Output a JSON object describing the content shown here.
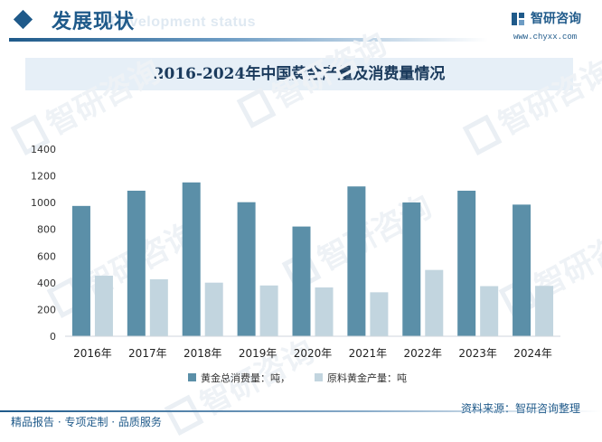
{
  "header": {
    "title": "发展现状",
    "subtitle_en": "Development status",
    "brand_name": "智研咨询",
    "brand_url": "www.chyxx.com",
    "accent_color": "#1f5a8a"
  },
  "watermark_text": "智研咨询",
  "footer": {
    "source": "资料来源：智研咨询整理",
    "slogan": "精品报告 · 专项定制 · 品质服务"
  },
  "chart_data": {
    "type": "bar",
    "title": "2016-2024年中国黄金产量及消费量情况",
    "categories": [
      "2016年",
      "2017年",
      "2018年",
      "2019年",
      "2020年",
      "2021年",
      "2022年",
      "2023年",
      "2024年"
    ],
    "series": [
      {
        "name": "黄金总消费量：吨，",
        "color": "#5b8fa8",
        "values": [
          975,
          1089,
          1151,
          1003,
          821,
          1121,
          1001,
          1089,
          985
        ]
      },
      {
        "name": "原料黄金产量：吨",
        "color": "#c2d5df",
        "values": [
          453,
          426,
          401,
          380,
          365,
          329,
          496,
          375,
          377
        ]
      }
    ],
    "ylim": [
      0,
      1400
    ],
    "yticks": [
      0,
      200,
      400,
      600,
      800,
      1000,
      1200,
      1400
    ],
    "grid": false,
    "legend": "bottom-center",
    "xlabel": "",
    "ylabel": ""
  }
}
